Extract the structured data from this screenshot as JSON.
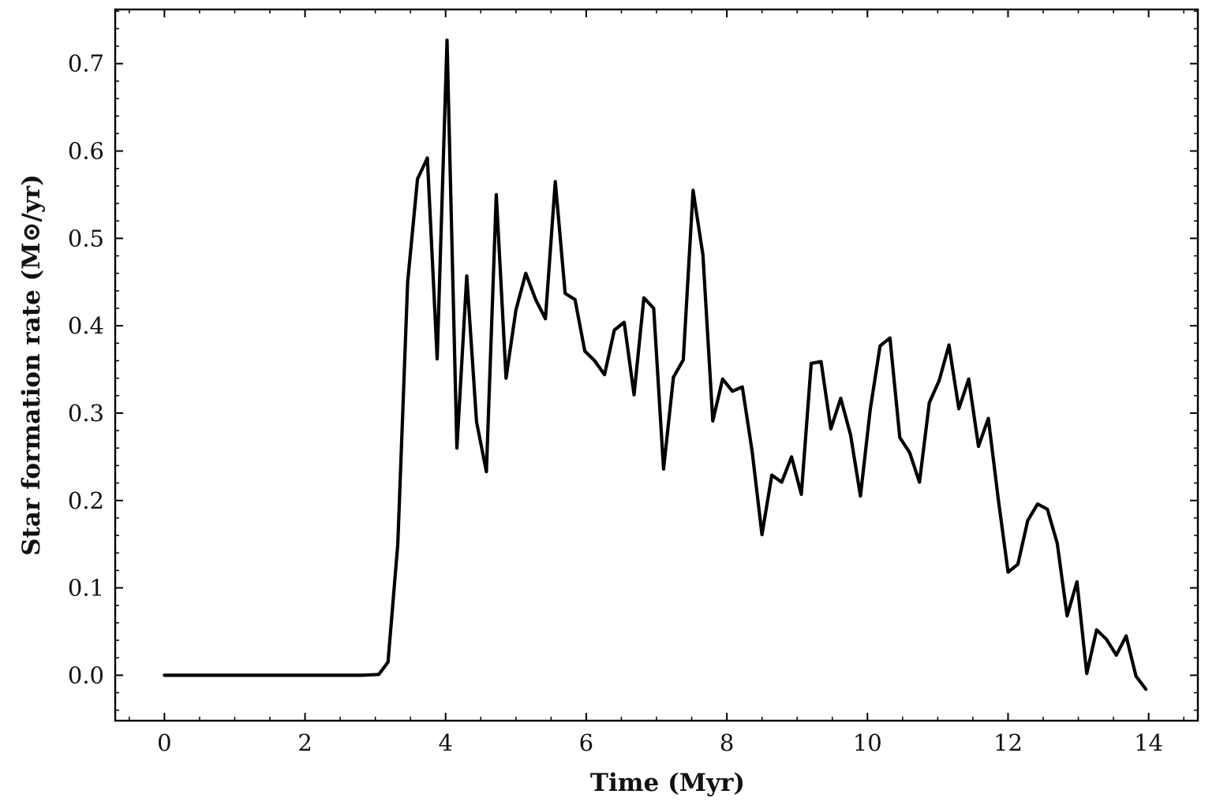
{
  "chart_data": {
    "type": "line",
    "title": "",
    "xlabel": "Time (Myr)",
    "ylabel": "Star formation rate (M⊙/yr)",
    "xlim": [
      -0.7,
      14.7
    ],
    "ylim": [
      -0.052,
      0.762
    ],
    "xticks": [
      0,
      2,
      4,
      6,
      8,
      10,
      12,
      14
    ],
    "xtick_labels": [
      "0",
      "2",
      "4",
      "6",
      "8",
      "10",
      "12",
      "14"
    ],
    "yticks": [
      0.0,
      0.1,
      0.2,
      0.3,
      0.4,
      0.5,
      0.6,
      0.7
    ],
    "ytick_labels": [
      "0.0",
      "0.1",
      "0.2",
      "0.3",
      "0.4",
      "0.5",
      "0.6",
      "0.7"
    ],
    "x_minor_step": 0.5,
    "y_minor_step": 0.02,
    "grid": false,
    "line_color": "#000000",
    "series": [
      {
        "x": [
          0.0,
          0.5,
          1.0,
          1.5,
          2.0,
          2.5,
          2.8,
          2.95,
          3.05,
          3.18,
          3.32,
          3.46,
          3.6,
          3.74,
          3.88,
          4.02,
          4.16,
          4.3,
          4.44,
          4.58,
          4.72,
          4.86,
          5.0,
          5.14,
          5.28,
          5.42,
          5.56,
          5.7,
          5.84,
          5.98,
          6.12,
          6.26,
          6.4,
          6.54,
          6.68,
          6.82,
          6.96,
          7.1,
          7.24,
          7.38,
          7.52,
          7.66,
          7.8,
          7.94,
          8.08,
          8.22,
          8.36,
          8.5,
          8.64,
          8.78,
          8.92,
          9.06,
          9.2,
          9.34,
          9.48,
          9.62,
          9.76,
          9.9,
          10.04,
          10.18,
          10.32,
          10.46,
          10.6,
          10.74,
          10.88,
          11.02,
          11.16,
          11.3,
          11.44,
          11.58,
          11.72,
          11.86,
          12.0,
          12.14,
          12.28,
          12.42,
          12.56,
          12.7,
          12.84,
          12.98,
          13.12,
          13.26,
          13.4,
          13.54,
          13.68,
          13.82,
          13.96
        ],
        "y": [
          0.0,
          0.0,
          0.0,
          0.0,
          0.0,
          0.0,
          0.0,
          0.0005,
          0.001,
          0.015,
          0.15,
          0.45,
          0.568,
          0.592,
          0.362,
          0.727,
          0.26,
          0.457,
          0.29,
          0.233,
          0.55,
          0.34,
          0.418,
          0.46,
          0.43,
          0.408,
          0.565,
          0.437,
          0.43,
          0.371,
          0.36,
          0.344,
          0.395,
          0.404,
          0.321,
          0.432,
          0.42,
          0.236,
          0.341,
          0.361,
          0.555,
          0.481,
          0.291,
          0.339,
          0.325,
          0.33,
          0.256,
          0.161,
          0.229,
          0.221,
          0.25,
          0.207,
          0.357,
          0.359,
          0.282,
          0.317,
          0.275,
          0.205,
          0.304,
          0.377,
          0.386,
          0.272,
          0.255,
          0.221,
          0.312,
          0.337,
          0.378,
          0.305,
          0.339,
          0.262,
          0.294,
          0.202,
          0.118,
          0.127,
          0.177,
          0.196,
          0.19,
          0.151,
          0.068,
          0.107,
          0.002,
          0.052,
          0.041,
          0.023,
          0.045,
          -0.001,
          -0.016
        ]
      }
    ]
  }
}
